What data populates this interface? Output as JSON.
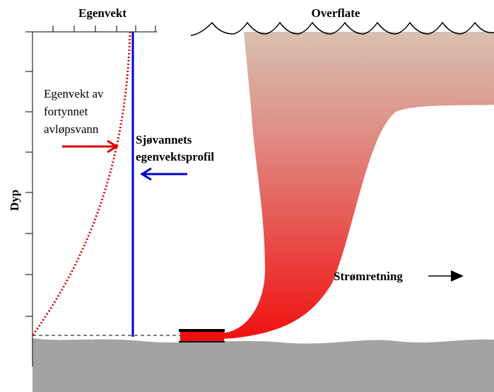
{
  "header": {
    "left_title": "Egenvekt",
    "right_title": "Overflate"
  },
  "axis": {
    "label": "Dyp"
  },
  "labels": {
    "effluent": [
      "Egenvekt av",
      "fortynnet",
      "avløpsvann"
    ],
    "seawater": [
      "Sjøvannets",
      "egenvektsprofil"
    ],
    "current": "Strømretning"
  }
}
